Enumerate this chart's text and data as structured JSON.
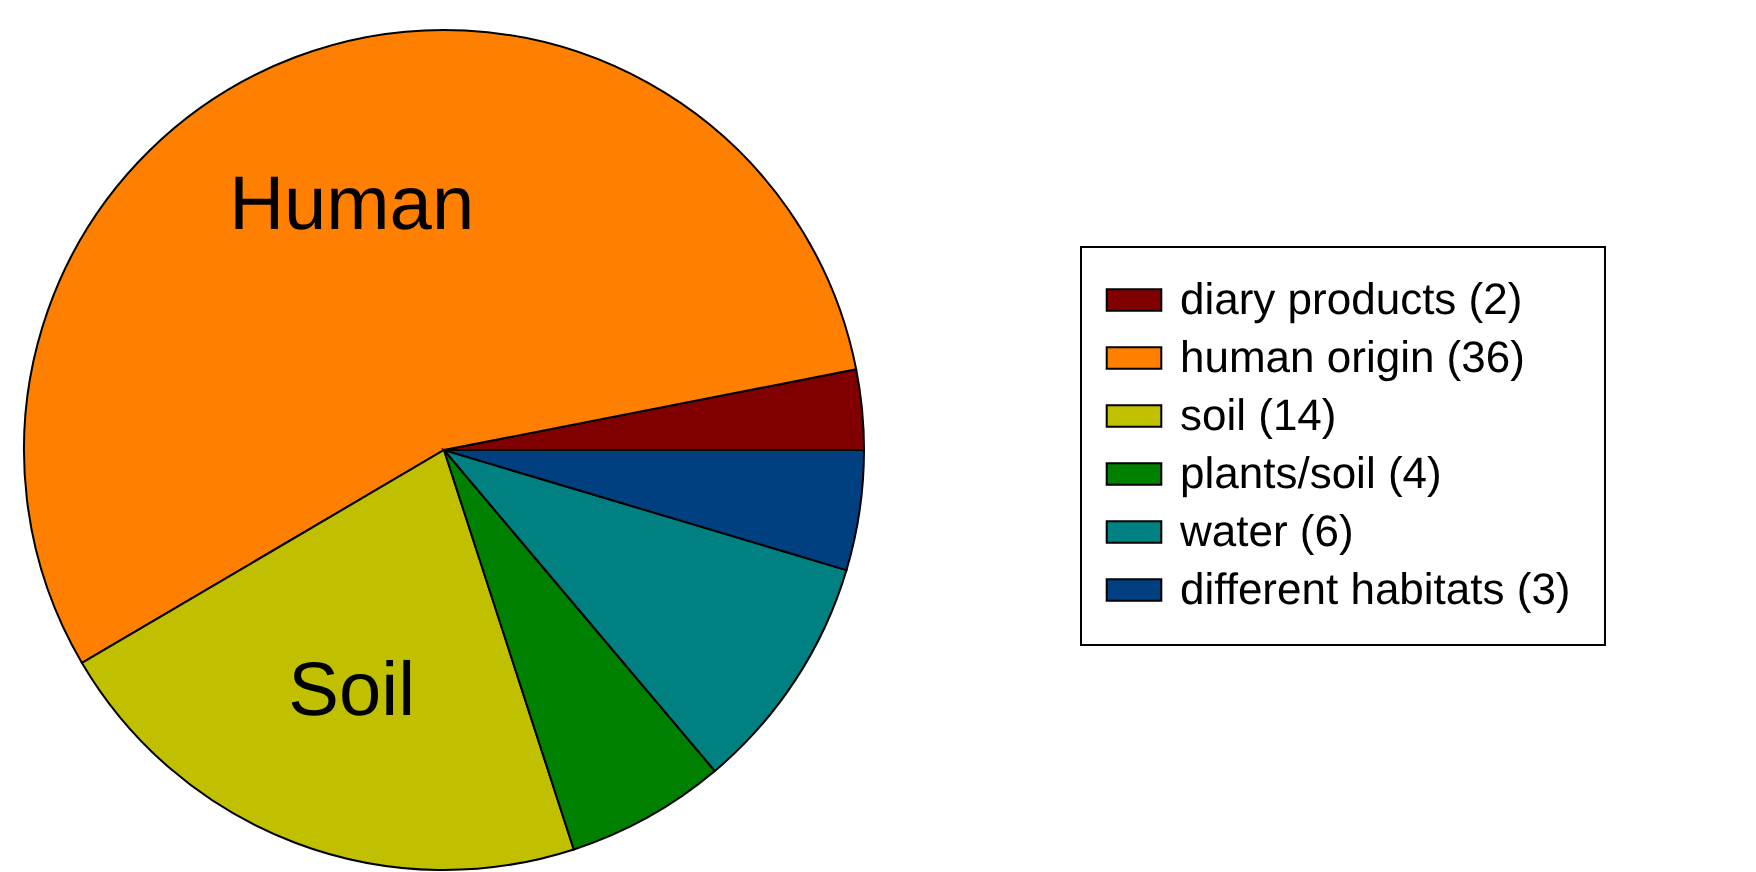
{
  "chart_data": {
    "type": "pie",
    "categories": [
      "diary products (2)",
      "human origin (36)",
      "soil (14)",
      "plants/soil (4)",
      "water (6)",
      "different habitats (3)"
    ],
    "values": [
      2,
      36,
      14,
      4,
      6,
      3
    ],
    "colors": [
      "#800000",
      "#ff8000",
      "#c0c000",
      "#008000",
      "#008080",
      "#004080"
    ],
    "annotations": [
      {
        "text": "Human",
        "x": "human origin (36)"
      },
      {
        "text": "Soil",
        "x": "soil (14)"
      }
    ],
    "legend": "right"
  }
}
